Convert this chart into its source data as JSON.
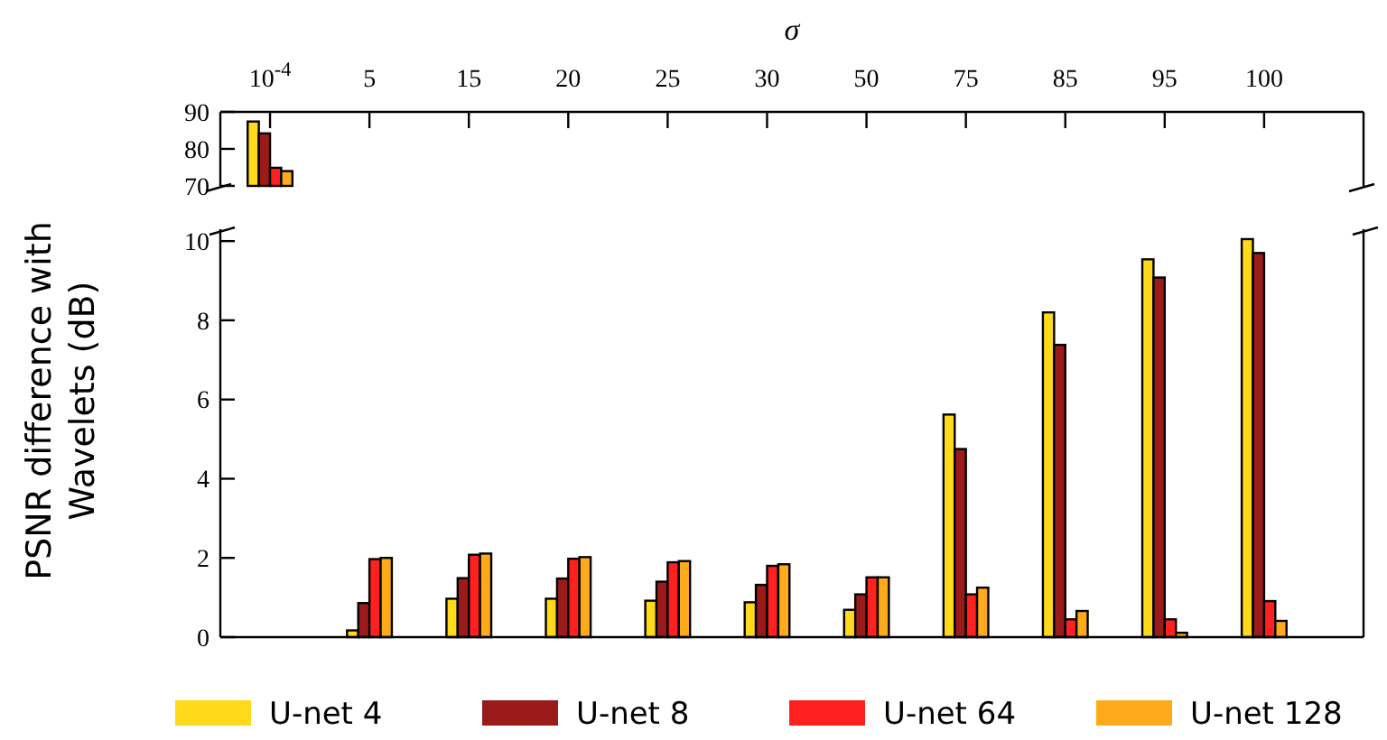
{
  "chart_data": [
    {
      "type": "bar",
      "xlabel": "σ",
      "categories": [
        "10$^{-4}$",
        "5",
        "15",
        "20",
        "25",
        "30",
        "50",
        "75",
        "85",
        "95",
        "100"
      ],
      "ylim": [
        70,
        90
      ],
      "yticks": [
        70,
        80,
        90
      ],
      "grid": false,
      "legend": false,
      "series": [
        {
          "color": "#ffd91a",
          "values": [
            87.4,
            null,
            null,
            null,
            null,
            null,
            null,
            null,
            null,
            null,
            null
          ]
        },
        {
          "color": "#9b1b1b",
          "values": [
            84.2,
            null,
            null,
            null,
            null,
            null,
            null,
            null,
            null,
            null,
            null
          ]
        },
        {
          "color": "#ff2020",
          "values": [
            74.9,
            null,
            null,
            null,
            null,
            null,
            null,
            null,
            null,
            null,
            null
          ]
        },
        {
          "color": "#ffaa1a",
          "values": [
            74.0,
            null,
            null,
            null,
            null,
            null,
            null,
            null,
            null,
            null,
            null
          ]
        }
      ]
    },
    {
      "type": "bar",
      "ylabel": "PSNR difference with Wavelets (dB)",
      "categories": [
        null,
        null,
        null,
        null,
        null,
        null,
        null,
        null,
        null,
        null,
        null
      ],
      "ylim": [
        0,
        10.3
      ],
      "yticks": [
        0,
        2,
        4,
        6,
        8,
        10
      ],
      "grid": false,
      "legend": "bottom",
      "tick_labels": "y",
      "series": [
        {
          "name": "U-net 4",
          "color": "#ffd91a",
          "values": [
            null,
            0.17,
            0.97,
            0.97,
            0.92,
            0.88,
            0.69,
            5.62,
            8.2,
            9.54,
            10.05
          ]
        },
        {
          "name": "U-net 8",
          "color": "#9b1b1b",
          "values": [
            null,
            0.86,
            1.49,
            1.48,
            1.4,
            1.32,
            1.08,
            4.75,
            7.38,
            9.08,
            9.7
          ]
        },
        {
          "name": "U-net 64",
          "color": "#ff2020",
          "values": [
            null,
            1.97,
            2.08,
            1.98,
            1.89,
            1.8,
            1.51,
            1.08,
            0.45,
            0.45,
            0.91
          ]
        },
        {
          "name": "U-net 128",
          "color": "#ffaa1a",
          "values": [
            null,
            2.0,
            2.11,
            2.02,
            1.92,
            1.84,
            1.51,
            1.25,
            0.66,
            0.11,
            0.41
          ]
        }
      ]
    }
  ]
}
